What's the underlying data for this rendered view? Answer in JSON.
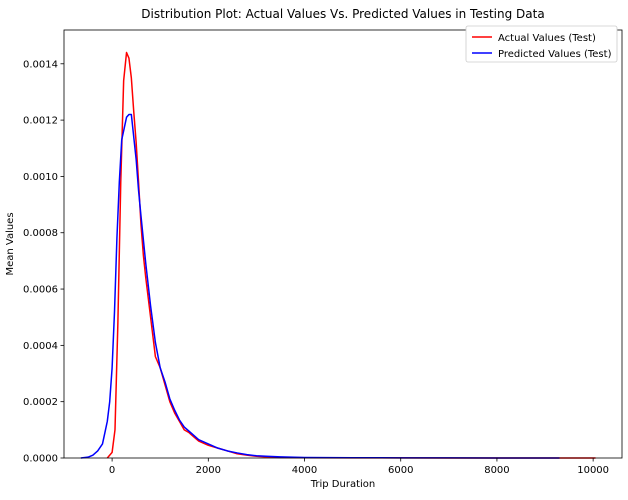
{
  "chart_data": {
    "type": "line",
    "title": "Distribution Plot: Actual Values Vs. Predicted Values in Testing Data",
    "xlabel": "Trip Duration",
    "ylabel": "Mean Values",
    "xlim": [
      -1000,
      10600
    ],
    "ylim": [
      0,
      0.00152
    ],
    "xticks": [
      0,
      2000,
      4000,
      6000,
      8000,
      10000
    ],
    "yticks": [
      0.0,
      0.0002,
      0.0004,
      0.0006,
      0.0008,
      0.001,
      0.0012,
      0.0014
    ],
    "xtick_labels": [
      "0",
      "2000",
      "4000",
      "6000",
      "8000",
      "10000"
    ],
    "ytick_labels": [
      "0.0000",
      "0.0002",
      "0.0004",
      "0.0006",
      "0.0008",
      "0.0010",
      "0.0012",
      "0.0014"
    ],
    "grid": false,
    "legend_position": "top-right",
    "series": [
      {
        "name": "Actual Values (Test)",
        "color": "#ff0000",
        "x": [
          -100,
          0,
          60,
          120,
          180,
          240,
          300,
          350,
          400,
          450,
          500,
          550,
          600,
          650,
          700,
          800,
          900,
          1000,
          1100,
          1200,
          1300,
          1400,
          1500,
          1600,
          1700,
          1800,
          2000,
          2200,
          2400,
          2600,
          2800,
          3000,
          3200,
          3500,
          4000,
          5000,
          6000,
          7000,
          8000,
          9000,
          10000,
          10050
        ],
        "y": [
          0,
          2e-05,
          0.0001,
          0.00048,
          0.00098,
          0.00134,
          0.00144,
          0.00142,
          0.00135,
          0.00123,
          0.00112,
          0.00098,
          0.00083,
          0.00072,
          0.00064,
          0.0005,
          0.00036,
          0.00032,
          0.00026,
          0.0002,
          0.00016,
          0.00013,
          0.0001,
          9e-05,
          7.5e-05,
          6e-05,
          4.5e-05,
          3.5e-05,
          2.5e-05,
          1.5e-05,
          1e-05,
          6e-06,
          4e-06,
          2e-06,
          1e-06,
          5e-07,
          3e-07,
          2e-07,
          1e-07,
          1e-07,
          1e-07,
          0
        ]
      },
      {
        "name": "Predicted Values (Test)",
        "color": "#0000ff",
        "x": [
          -650,
          -500,
          -400,
          -300,
          -200,
          -150,
          -100,
          -50,
          0,
          50,
          100,
          150,
          200,
          250,
          300,
          350,
          400,
          450,
          500,
          550,
          600,
          700,
          800,
          900,
          1000,
          1100,
          1200,
          1300,
          1400,
          1500,
          1600,
          1700,
          1800,
          2000,
          2200,
          2400,
          2600,
          2800,
          3000,
          3200,
          3500,
          4000,
          5000,
          6000,
          7000,
          8000,
          9300
        ],
        "y": [
          0,
          3e-06,
          1e-05,
          2.5e-05,
          5e-05,
          9e-05,
          0.00013,
          0.0002,
          0.00032,
          0.00052,
          0.00078,
          0.00098,
          0.00113,
          0.00117,
          0.00121,
          0.00122,
          0.00122,
          0.00114,
          0.00106,
          0.00095,
          0.00086,
          0.00069,
          0.00054,
          0.00041,
          0.00032,
          0.00027,
          0.00021,
          0.00017,
          0.000135,
          0.00011,
          9.5e-05,
          8e-05,
          6.5e-05,
          5e-05,
          3.5e-05,
          2.5e-05,
          1.8e-05,
          1.2e-05,
          8e-06,
          6e-06,
          4e-06,
          2e-06,
          1e-06,
          5e-07,
          3e-07,
          1e-07,
          0
        ]
      }
    ]
  }
}
